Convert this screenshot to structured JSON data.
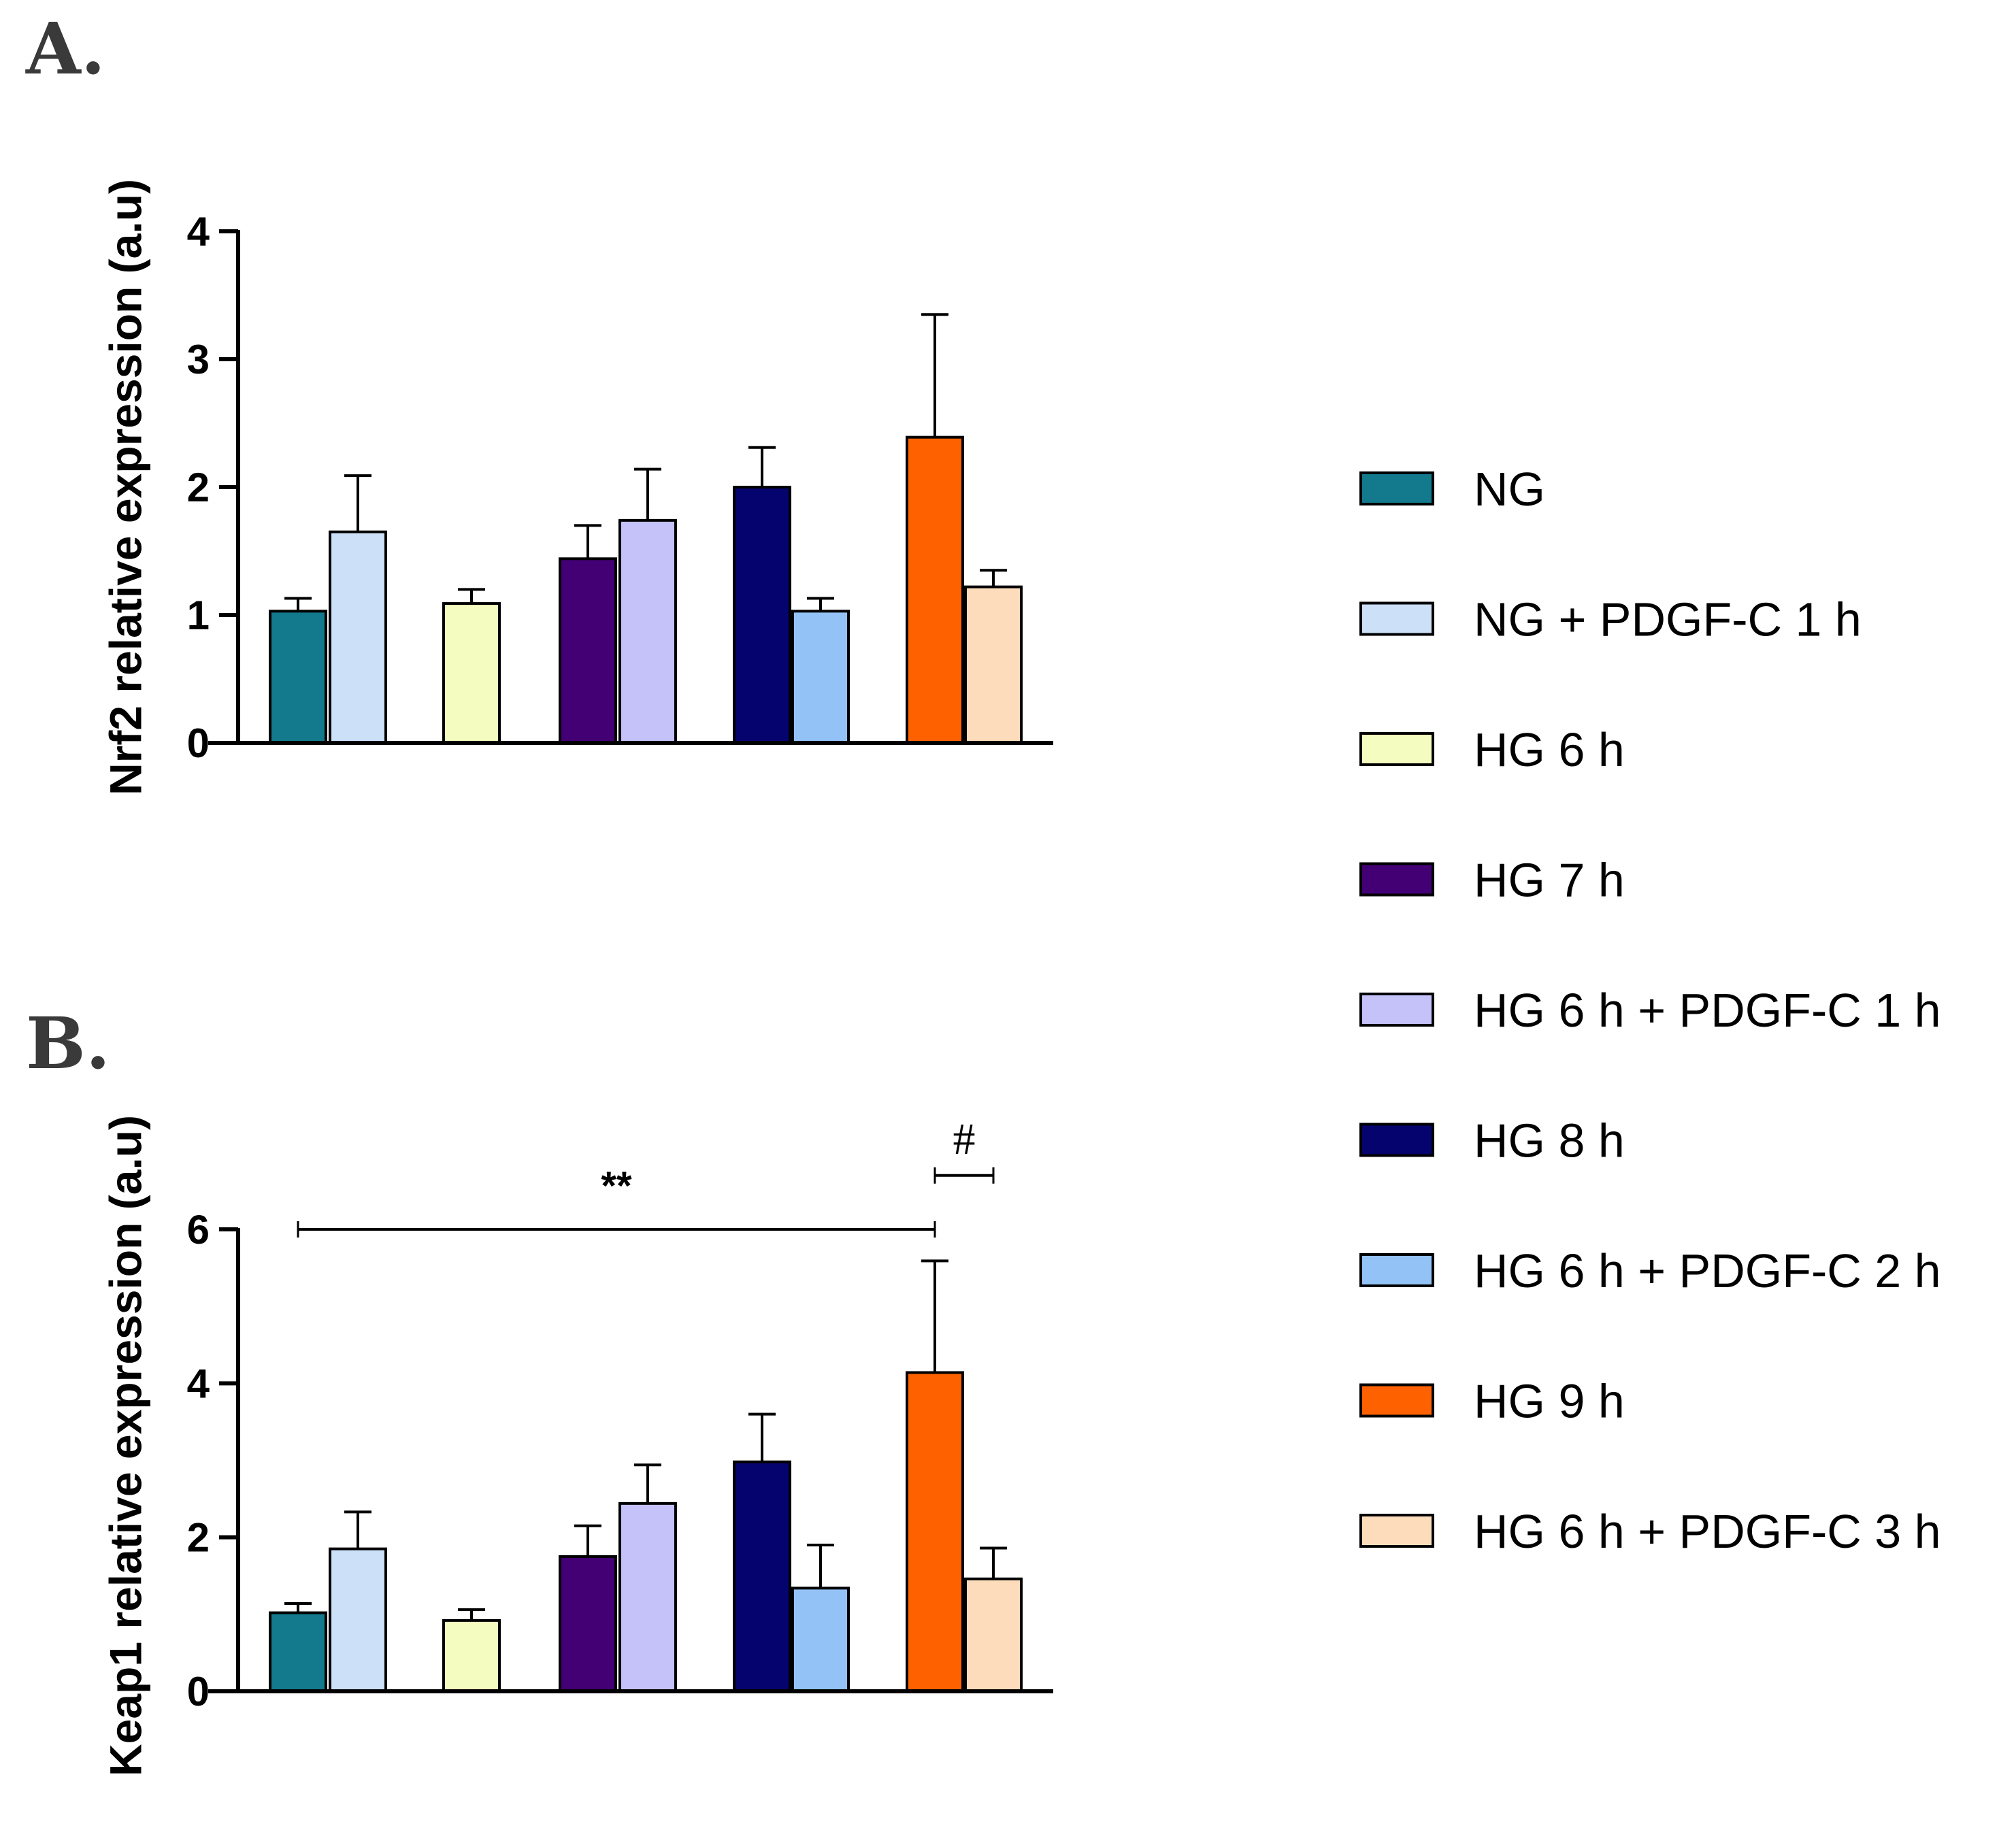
{
  "colors": {
    "NG": "#127a8c",
    "NG + PDGF-C 1 h": "#cce0f7",
    "HG 6 h": "#f5fcc0",
    "HG 7 h": "#420074",
    "HG 6 h + PDGF-C 1 h": "#c4c2f8",
    "HG 8 h": "#05046e",
    "HG 6 h + PDGF-C 2 h": "#93c2f7",
    "HG 9 h": "#fd6100",
    "HG 6 h + PDGF-C 3 h": "#fcdcbb"
  },
  "legend": {
    "items": [
      {
        "label": "NG",
        "color": "#127a8c"
      },
      {
        "label": "NG + PDGF-C 1 h",
        "color": "#cce0f7"
      },
      {
        "label": "HG 6 h",
        "color": "#f5fcc0"
      },
      {
        "label": "HG 7 h",
        "color": "#420074"
      },
      {
        "label": "HG 6 h + PDGF-C 1 h",
        "color": "#c4c2f8"
      },
      {
        "label": "HG 8 h",
        "color": "#05046e"
      },
      {
        "label": "HG 6 h + PDGF-C 2 h",
        "color": "#93c2f7"
      },
      {
        "label": "HG 9 h",
        "color": "#fd6100"
      },
      {
        "label": "HG 6 h + PDGF-C 3 h",
        "color": "#fcdcbb"
      }
    ]
  },
  "chart_data": [
    {
      "panel": "A.",
      "type": "bar",
      "title": "",
      "xlabel": "",
      "ylabel": "Nrf2 relative expression (a.u)",
      "ylim": [
        0,
        4
      ],
      "yticks": [
        0,
        1,
        2,
        3,
        4
      ],
      "categories": [
        "NG",
        "NG + PDGF-C 1 h",
        "HG 6 h",
        "HG 7 h",
        "HG 6 h + PDGF-C 1 h",
        "HG 8 h",
        "HG 6 h + PDGF-C 2 h",
        "HG 9 h",
        "HG 6 h + PDGF-C 3 h"
      ],
      "values": [
        1.03,
        1.65,
        1.09,
        1.44,
        1.74,
        2.0,
        1.03,
        2.39,
        1.22
      ],
      "errors": [
        0.1,
        0.44,
        0.11,
        0.26,
        0.4,
        0.31,
        0.1,
        0.96,
        0.13
      ],
      "significance": []
    },
    {
      "panel": "B.",
      "type": "bar",
      "title": "",
      "xlabel": "",
      "ylabel": "Keap1 relative expression (a.u)",
      "ylim": [
        0,
        6
      ],
      "yticks": [
        0,
        2,
        4,
        6
      ],
      "categories": [
        "NG",
        "NG + PDGF-C 1 h",
        "HG 6 h",
        "HG 7 h",
        "HG 6 h + PDGF-C 1 h",
        "HG 8 h",
        "HG 6 h + PDGF-C 2 h",
        "HG 9 h",
        "HG 6 h + PDGF-C 3 h"
      ],
      "values": [
        1.02,
        1.85,
        0.92,
        1.75,
        2.44,
        2.98,
        1.34,
        4.14,
        1.46
      ],
      "errors": [
        0.12,
        0.48,
        0.14,
        0.4,
        0.5,
        0.62,
        0.56,
        1.45,
        0.4
      ],
      "significance": [
        {
          "from": "NG",
          "to": "HG 9 h",
          "label": "**",
          "y": 6.0
        },
        {
          "from": "HG 9 h",
          "to": "HG 6 h + PDGF-C 3 h",
          "label": "#",
          "y": 6.7
        }
      ]
    }
  ]
}
